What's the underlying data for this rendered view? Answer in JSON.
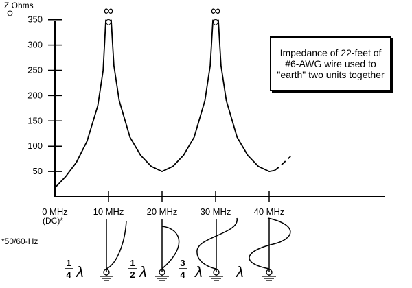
{
  "chart_data": {
    "type": "line",
    "ylabel_top": "Z Ohms",
    "ylabel_unit": "Ω",
    "yticks": [
      50,
      100,
      150,
      200,
      250,
      300,
      350
    ],
    "ylim": [
      0,
      360
    ],
    "xlim": [
      0,
      44
    ],
    "xticks": [
      {
        "value": 0,
        "label": "0 MHz"
      },
      {
        "value": 10,
        "label": "10 MHz"
      },
      {
        "value": 20,
        "label": "20 MHz"
      },
      {
        "value": 30,
        "label": "30 MHz"
      },
      {
        "value": 40,
        "label": "40 MHz"
      }
    ],
    "dc_label": "(DC)*",
    "footnote": "*50/60-Hz",
    "infinity_labels": [
      {
        "x": 10,
        "symbol": "∞",
        "unit": "Ω"
      },
      {
        "x": 30,
        "symbol": "∞",
        "unit": "Ω"
      }
    ],
    "series": [
      {
        "solid": true,
        "points": [
          [
            0,
            18
          ],
          [
            2,
            40
          ],
          [
            4,
            68
          ],
          [
            6,
            110
          ],
          [
            8,
            180
          ],
          [
            9,
            250
          ],
          [
            9.5,
            350
          ],
          [
            10.5,
            350
          ],
          [
            11,
            260
          ],
          [
            12,
            190
          ],
          [
            14,
            118
          ],
          [
            16,
            82
          ],
          [
            18,
            60
          ],
          [
            20,
            50
          ],
          [
            22,
            60
          ],
          [
            24,
            82
          ],
          [
            26,
            118
          ],
          [
            28,
            190
          ],
          [
            29,
            260
          ],
          [
            29.5,
            350
          ],
          [
            30.5,
            350
          ],
          [
            31,
            260
          ],
          [
            32,
            190
          ],
          [
            34,
            118
          ],
          [
            36,
            82
          ],
          [
            38,
            60
          ],
          [
            40,
            50
          ],
          [
            41,
            52
          ]
        ]
      },
      {
        "solid": false,
        "points": [
          [
            41,
            52
          ],
          [
            42,
            60
          ],
          [
            43,
            70
          ],
          [
            44,
            80
          ]
        ]
      }
    ],
    "annotation": "Impedance of 22-feet of #6-AWG wire used to \"earth\" two units together",
    "wavelength_labels": [
      "1/4 λ",
      "1/2 λ",
      "3/4 λ",
      "λ"
    ]
  }
}
